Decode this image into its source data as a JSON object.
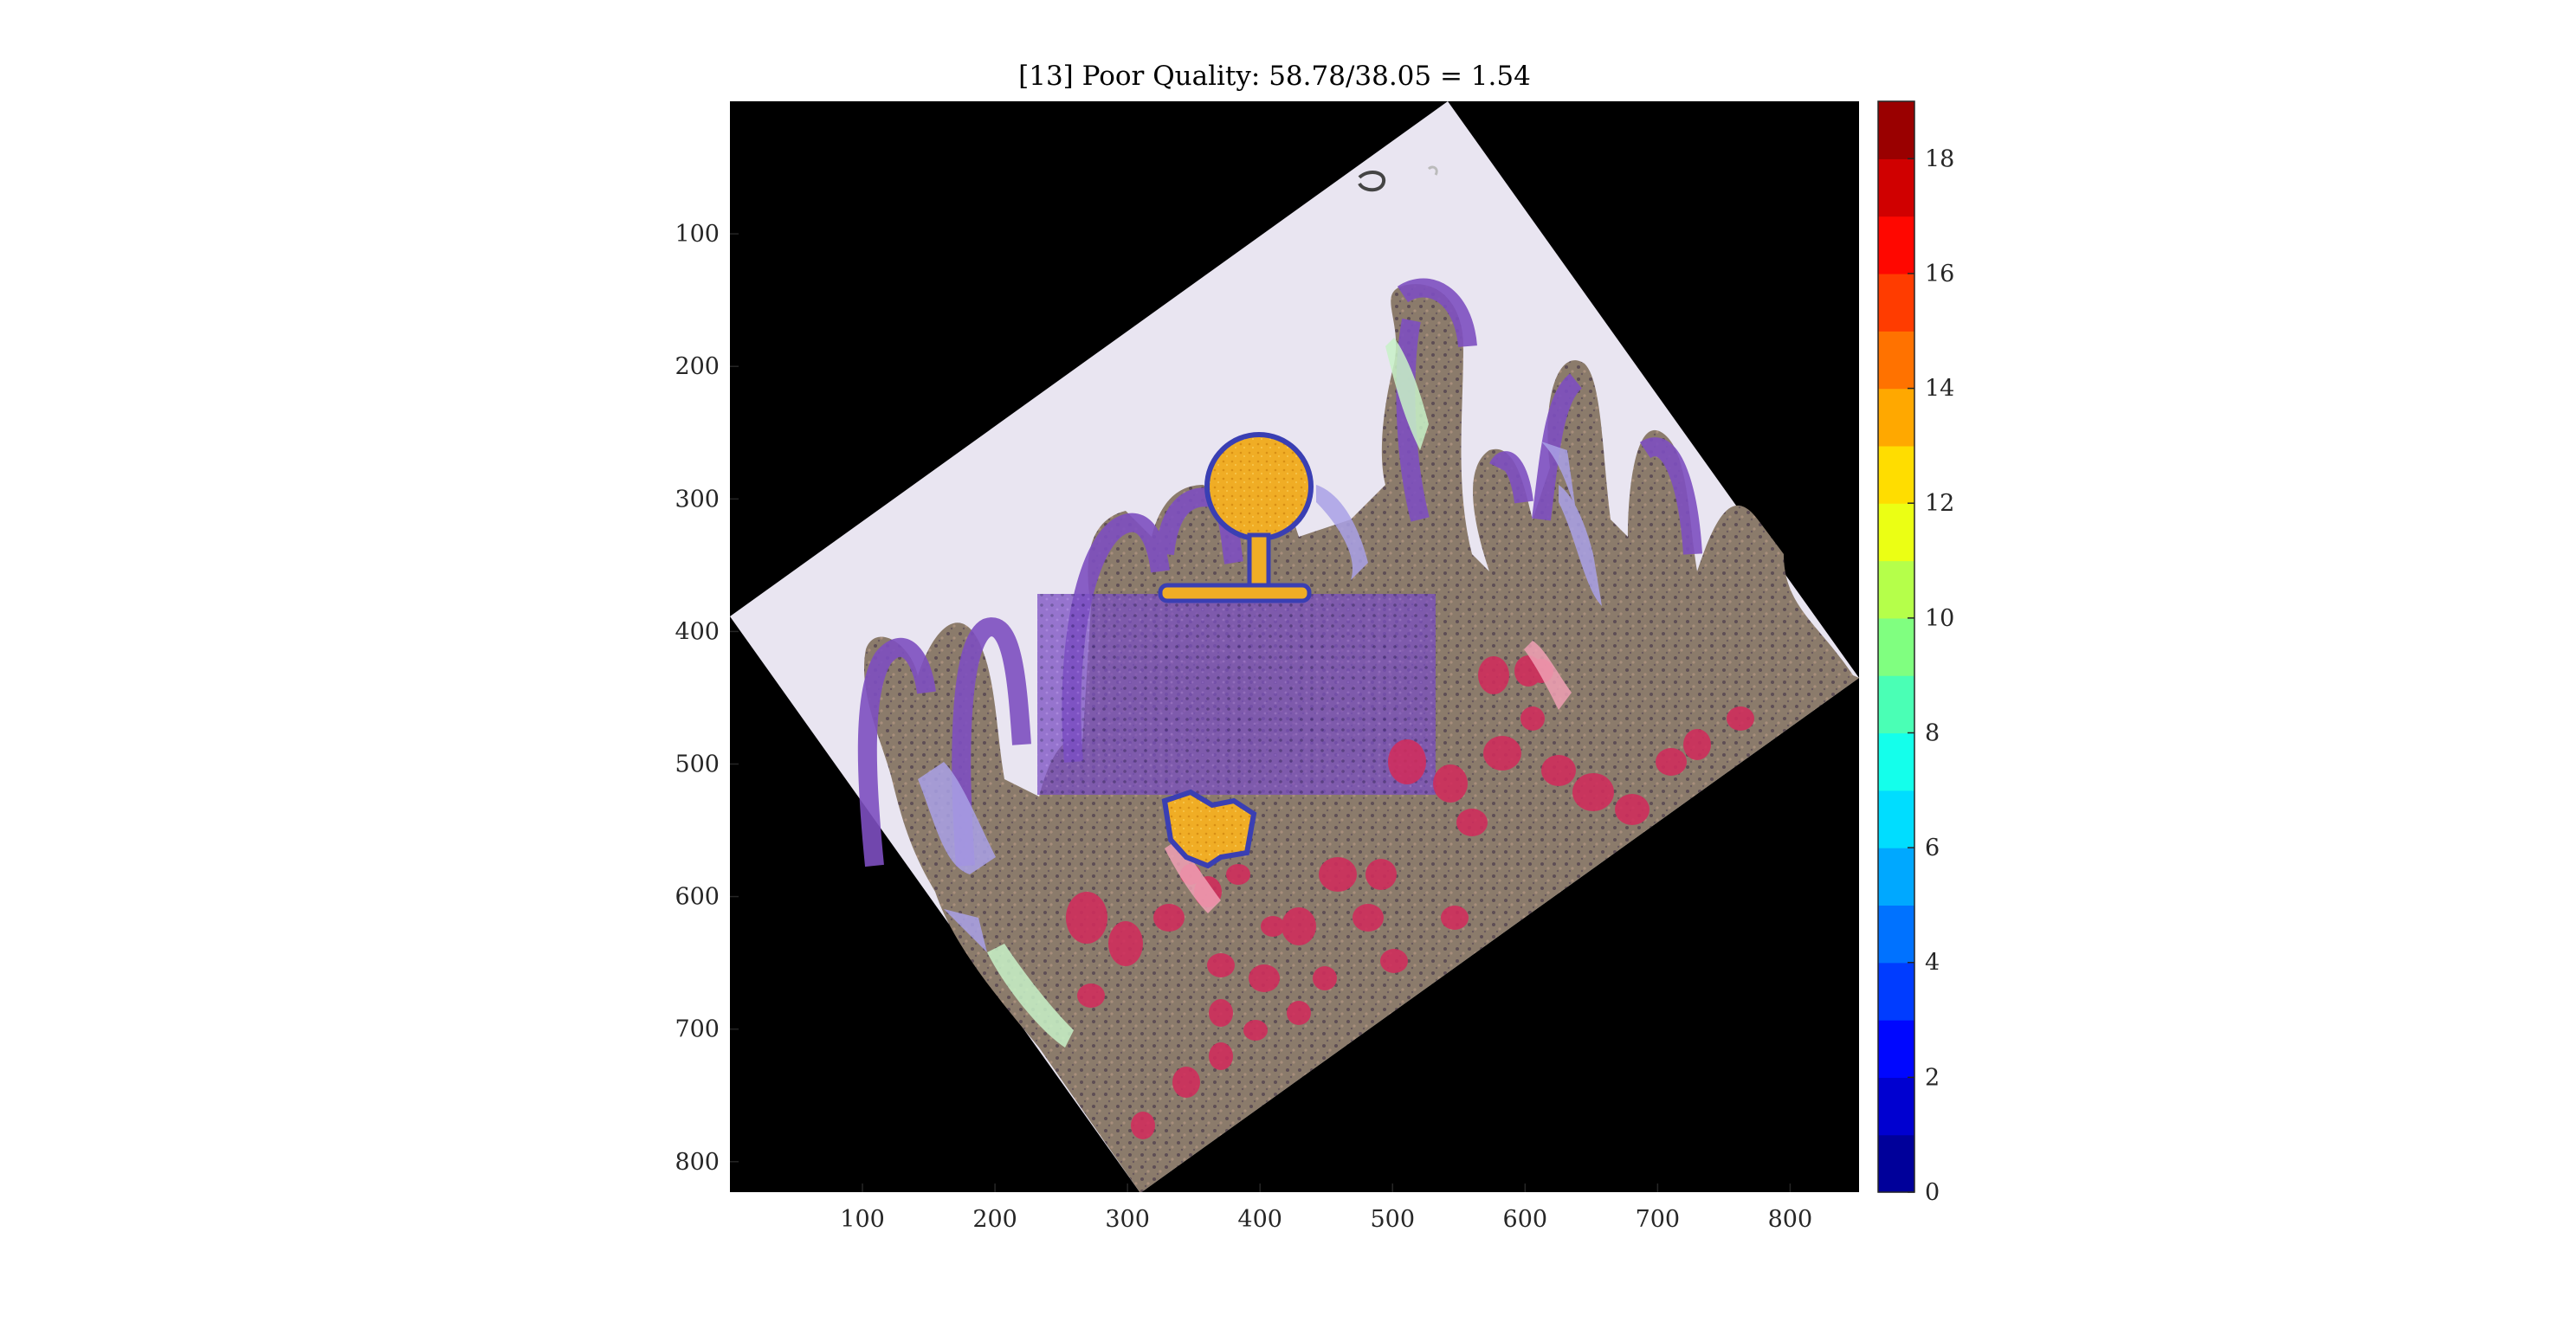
{
  "chart_data": {
    "type": "heatmap",
    "title": "[13] Poor Quality: 58.78/38.05 = 1.54",
    "xlabel": "",
    "ylabel": "",
    "xlim": [
      0,
      852
    ],
    "ylim": [
      0,
      823
    ],
    "y_reversed": true,
    "x_ticks": [
      100,
      200,
      300,
      400,
      500,
      600,
      700,
      800
    ],
    "y_ticks": [
      100,
      200,
      300,
      400,
      500,
      600,
      700,
      800
    ],
    "colorbar": {
      "ticks": [
        0,
        2,
        4,
        6,
        8,
        10,
        12,
        14,
        16,
        18
      ],
      "range": [
        0,
        19
      ],
      "levels": 19,
      "colormap": "jet"
    },
    "image_description_colors": {
      "background": "#000000",
      "tissue_base": "#8a7a6a",
      "slide_bg": "#e8e4f0",
      "purple_overlay": "#7d4fc0",
      "red_overlay": "#d22a5a",
      "orange_region": "#f2a51e",
      "outline": "#3438a8"
    }
  }
}
